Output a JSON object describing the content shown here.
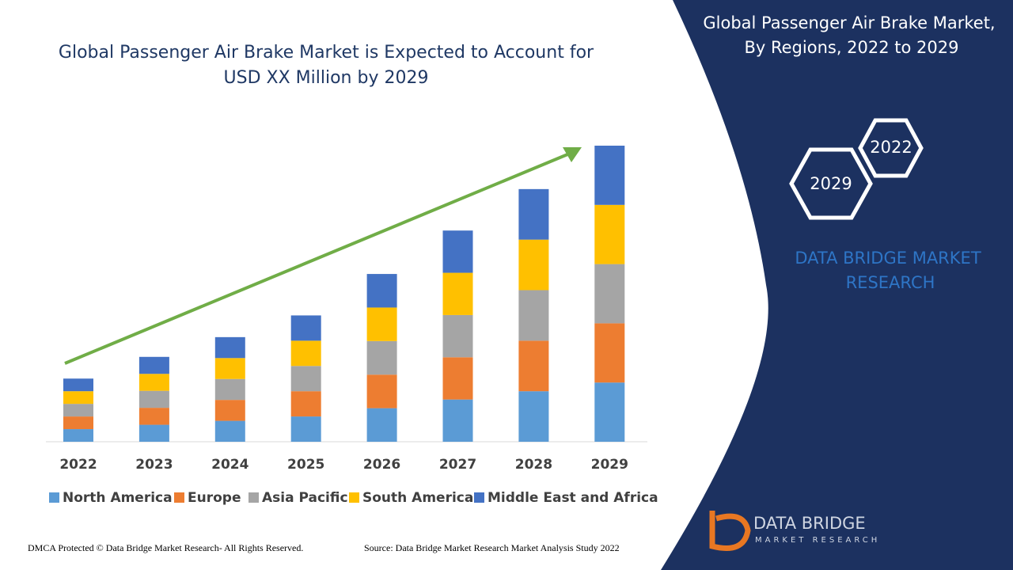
{
  "chart_data": {
    "type": "stacked-bar",
    "title": "Global Passenger Air Brake Market is Expected to Account for USD XX Million by 2029",
    "categories": [
      "2022",
      "2023",
      "2024",
      "2025",
      "2026",
      "2027",
      "2028",
      "2029"
    ],
    "series": [
      {
        "name": "North America",
        "color": "#5b9bd5",
        "values": [
          16,
          21.5,
          26.5,
          32,
          42.5,
          53.5,
          64,
          75
        ]
      },
      {
        "name": "Europe",
        "color": "#ed7d31",
        "values": [
          16,
          21.5,
          26.5,
          32,
          42.5,
          53.5,
          64,
          75
        ]
      },
      {
        "name": "Asia Pacific",
        "color": "#a5a5a5",
        "values": [
          16,
          21.5,
          26.5,
          32,
          42.5,
          53.5,
          64,
          75
        ]
      },
      {
        "name": "South America",
        "color": "#ffc000",
        "values": [
          16,
          21.5,
          26.5,
          32,
          42.5,
          53.5,
          64,
          75
        ]
      },
      {
        "name": "Middle East and Africa",
        "color": "#4472c4",
        "values": [
          16,
          21.5,
          26.5,
          32,
          42.5,
          53.5,
          64,
          75
        ]
      }
    ]
  },
  "panel": {
    "title_line1": "Global Passenger Air Brake Market,",
    "title_line2": "By Regions, 2022 to 2029",
    "hex_top": "2022",
    "hex_bottom": "2029",
    "brand_line1": "DATA BRIDGE MARKET",
    "brand_line2": "RESEARCH",
    "logo_line1": "DATA BRIDGE",
    "logo_line2": "MARKET RESEARCH"
  },
  "footer": {
    "left": "DMCA Protected © Data Bridge Market Research- All Rights Reserved.",
    "right": "Source: Data Bridge Market Research Market Analysis Study 2022"
  }
}
